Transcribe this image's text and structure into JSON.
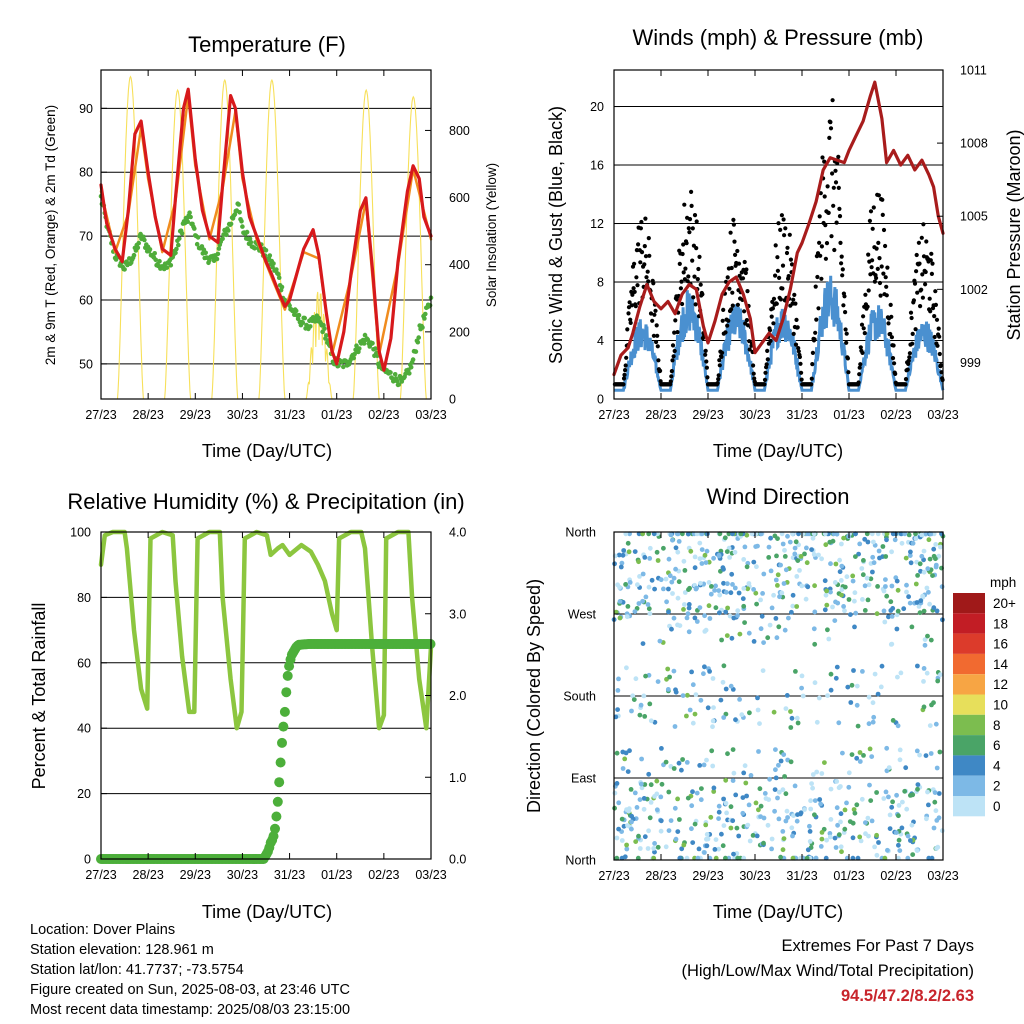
{
  "panels": {
    "temperature": {
      "title": "Temperature (F)",
      "xlabel": "Time (Day/UTC)",
      "ylabel_left": "2m & 9m T (Red, Orange) & 2m Td (Green)",
      "ylabel_right": "Solar Insolation (Yellow)"
    },
    "winds": {
      "title": "Winds (mph) & Pressure (mb)",
      "xlabel": "Time (Day/UTC)",
      "ylabel_left": "Sonic Wind & Gust (Blue, Black)",
      "ylabel_right": "Station Pressure (Maroon)"
    },
    "humidity": {
      "title": "Relative Humidity (%) & Precipitation (in)",
      "xlabel": "Time (Day/UTC)",
      "ylabel_left": "Percent & Total Rainfall"
    },
    "direction": {
      "title": "Wind Direction",
      "xlabel": "Time (Day/UTC)",
      "ylabel_left": "Direction (Colored By Speed)"
    }
  },
  "info": {
    "location": "Location: Dover Plains",
    "elevation": "Station elevation: 128.961 m",
    "latlon": "Station lat/lon: 41.7737; -73.5754",
    "created": "Figure created on Sun, 2025-08-03, at 23:46 UTC",
    "recent": "Most recent data timestamp: 2025/08/03 23:15:00"
  },
  "extremes": {
    "line1": "Extremes For Past 7 Days",
    "line2": "(High/Low/Max Wind/Total Precipitation)",
    "values": "94.5/47.2/8.2/2.63"
  },
  "chart_data": [
    {
      "id": "temperature",
      "type": "line",
      "title": "Temperature (F)",
      "xlabel": "Time (Day/UTC)",
      "ylabel": "2m & 9m T (Red, Orange) & 2m Td (Green)",
      "y2label": "Solar Insolation (Yellow)",
      "xticks": [
        "27/23",
        "28/23",
        "29/23",
        "30/23",
        "31/23",
        "01/23",
        "02/23",
        "03/23"
      ],
      "xlim": [
        0,
        7
      ],
      "ylim": [
        44.5,
        96
      ],
      "yticks": [
        50,
        60,
        70,
        80,
        90
      ],
      "y2lim": [
        0,
        980
      ],
      "y2ticks": [
        0,
        200,
        400,
        600,
        800
      ],
      "grid": true,
      "series": [
        {
          "name": "2m T",
          "color": "#d7191c",
          "x": [
            0,
            0.12,
            0.3,
            0.45,
            0.58,
            0.72,
            0.85,
            1,
            1.15,
            1.3,
            1.48,
            1.58,
            1.75,
            1.85,
            2,
            2.15,
            2.3,
            2.48,
            2.58,
            2.75,
            2.85,
            3,
            3.15,
            3.3,
            3.5,
            3.62,
            3.78,
            3.9,
            4,
            4.15,
            4.3,
            4.5,
            4.62,
            4.78,
            4.9,
            5,
            5.15,
            5.3,
            5.5,
            5.62,
            5.78,
            5.9,
            6,
            6.15,
            6.3,
            6.5,
            6.62,
            6.75,
            6.85,
            7
          ],
          "y": [
            78,
            72,
            68,
            66,
            74,
            86,
            88,
            80,
            73,
            68,
            67,
            76,
            90,
            93,
            82,
            74,
            70,
            69,
            78,
            92,
            90,
            80,
            73,
            70,
            66,
            64,
            61,
            59,
            60,
            64,
            68,
            71,
            67,
            58,
            52,
            50,
            55,
            64,
            74,
            76,
            63,
            52,
            49,
            54,
            66,
            77,
            81,
            79,
            73,
            70
          ]
        },
        {
          "name": "9m T",
          "color": "#f08c1e",
          "x": [
            0,
            0.3,
            0.58,
            0.85,
            1,
            1.3,
            1.58,
            1.85,
            2,
            2.3,
            2.58,
            2.85,
            3,
            3.3,
            3.62,
            3.9,
            4.3,
            4.62,
            4.9,
            5.3,
            5.62,
            5.9,
            6.3,
            6.62,
            7
          ],
          "y": [
            77,
            67.5,
            73.5,
            87,
            79,
            67.5,
            75.5,
            92,
            81,
            69.5,
            77.5,
            89.5,
            79,
            69.5,
            63.5,
            58.5,
            67.5,
            66.5,
            51.5,
            63.5,
            75.5,
            51.5,
            65.5,
            80.5,
            69.5
          ]
        },
        {
          "name": "2m Td",
          "color": "#4fac3a",
          "x": [
            0,
            0.15,
            0.3,
            0.5,
            0.7,
            0.85,
            1,
            1.2,
            1.4,
            1.6,
            1.75,
            1.9,
            2,
            2.2,
            2.4,
            2.6,
            2.75,
            2.9,
            3,
            3.2,
            3.4,
            3.6,
            3.75,
            3.9,
            4,
            4.2,
            4.4,
            4.6,
            4.75,
            4.9,
            5,
            5.2,
            5.4,
            5.6,
            5.75,
            5.9,
            6,
            6.2,
            6.4,
            6.6,
            6.75,
            6.9,
            7
          ],
          "y": [
            76,
            71,
            67,
            65,
            67,
            70,
            68,
            66,
            65,
            68,
            72,
            73,
            70,
            67,
            66,
            70,
            72,
            75,
            71,
            69,
            68,
            66,
            64,
            60,
            59,
            57,
            56,
            57,
            55,
            51,
            50,
            50,
            52,
            54,
            53,
            50,
            49,
            48,
            47,
            50,
            55,
            58,
            60
          ]
        }
      ],
      "solar": {
        "name": "Solar Insolation",
        "color": "#f7e05a",
        "days": [
          0,
          1,
          2,
          3,
          4,
          5,
          6
        ],
        "peaks": [
          960,
          920,
          950,
          950,
          330,
          920,
          900
        ]
      }
    },
    {
      "id": "winds",
      "type": "scatter",
      "title": "Winds (mph) & Pressure (mb)",
      "xlabel": "Time (Day/UTC)",
      "ylabel": "Sonic Wind & Gust (Blue, Black)",
      "y2label": "Station Pressure (Maroon)",
      "xticks": [
        "27/23",
        "28/23",
        "29/23",
        "30/23",
        "31/23",
        "01/23",
        "02/23",
        "03/23"
      ],
      "xlim": [
        0,
        7
      ],
      "ylim": [
        0,
        22.5
      ],
      "yticks": [
        0,
        4,
        8,
        12,
        16,
        20
      ],
      "y2lim": [
        997.5,
        1011
      ],
      "y2ticks": [
        999,
        1002,
        1005,
        1008,
        1011
      ],
      "grid": true,
      "series": [
        {
          "name": "Sonic Wind",
          "color": "#4a90d0",
          "hourly_day_max": [
            5,
            7,
            6,
            6,
            8,
            6,
            5,
            6
          ]
        },
        {
          "name": "Gust",
          "color": "#000000",
          "hourly_day_max": [
            12,
            14,
            12,
            12,
            20,
            14,
            11,
            10
          ]
        },
        {
          "name": "Station Pressure",
          "color": "#a81c1c",
          "x": [
            0,
            0.15,
            0.3,
            0.4,
            0.55,
            0.7,
            0.85,
            1.0,
            1.15,
            1.3,
            1.45,
            1.6,
            1.75,
            1.9,
            2.0,
            2.15,
            2.3,
            2.45,
            2.6,
            2.75,
            2.9,
            3.0,
            3.15,
            3.3,
            3.45,
            3.6,
            3.75,
            3.9,
            4.0,
            4.15,
            4.3,
            4.45,
            4.6,
            4.75,
            4.9,
            5.0,
            5.15,
            5.3,
            5.45,
            5.55,
            5.7,
            5.8,
            5.95,
            6.1,
            6.25,
            6.4,
            6.55,
            6.7,
            6.8,
            6.9,
            7.0
          ],
          "y": [
            998.5,
            999.3,
            999.6,
            1000.2,
            1001.3,
            1002.2,
            1001.5,
            1001.2,
            1001.5,
            1001.0,
            1001.8,
            1002.2,
            1002.0,
            1000.5,
            999.8,
            1000.7,
            1001.8,
            1002.3,
            1002.5,
            1001.8,
            1000.8,
            999.4,
            999.8,
            1000.2,
            999.9,
            1000.8,
            1002.0,
            1003.5,
            1003.9,
            1004.7,
            1005.6,
            1006.9,
            1007.4,
            1007.3,
            1007.2,
            1007.7,
            1008.3,
            1008.9,
            1009.9,
            1010.5,
            1009.0,
            1007.2,
            1007.7,
            1007.1,
            1007.5,
            1006.9,
            1007.3,
            1006.7,
            1006.2,
            1005.0,
            1004.3
          ]
        }
      ]
    },
    {
      "id": "humidity",
      "type": "line",
      "title": "Relative Humidity (%) & Precipitation (in)",
      "xlabel": "Time (Day/UTC)",
      "ylabel": "Percent & Total Rainfall",
      "xticks": [
        "27/23",
        "28/23",
        "29/23",
        "30/23",
        "31/23",
        "01/23",
        "02/23",
        "03/23"
      ],
      "xlim": [
        0,
        7
      ],
      "ylim": [
        0,
        100
      ],
      "yticks": [
        0,
        20,
        40,
        60,
        80,
        100
      ],
      "y2lim": [
        0,
        4
      ],
      "y2ticks": [
        "0.0",
        "1.0",
        "2.0",
        "3.0",
        "4.0"
      ],
      "grid": true,
      "series": [
        {
          "name": "Relative Humidity",
          "color": "#8cc63f",
          "x": [
            0,
            0.08,
            0.25,
            0.5,
            0.55,
            0.7,
            0.85,
            0.98,
            1.05,
            1.3,
            1.52,
            1.58,
            1.72,
            1.87,
            1.98,
            2.05,
            2.3,
            2.52,
            2.58,
            2.75,
            2.88,
            2.98,
            3.05,
            3.3,
            3.52,
            3.6,
            3.75,
            3.85,
            4.0,
            4.25,
            4.45,
            4.6,
            4.75,
            4.9,
            5.0,
            5.05,
            5.3,
            5.52,
            5.6,
            5.75,
            5.9,
            6.0,
            6.05,
            6.3,
            6.52,
            6.6,
            6.75,
            6.9,
            7.0
          ],
          "y": [
            90,
            99,
            100,
            100,
            95,
            70,
            52,
            46,
            98,
            100,
            99,
            85,
            62,
            45,
            45,
            98,
            100,
            100,
            80,
            55,
            40,
            45,
            98,
            100,
            99,
            93,
            95,
            96,
            93,
            96,
            94,
            90,
            85,
            75,
            70,
            98,
            100,
            100,
            95,
            65,
            40,
            44,
            98,
            100,
            100,
            80,
            55,
            40,
            65
          ]
        },
        {
          "name": "Total Rainfall",
          "color": "#4caf3a",
          "x": [
            0,
            3.45,
            3.5,
            3.55,
            3.6,
            3.65,
            3.7,
            3.75,
            3.8,
            3.85,
            3.9,
            3.95,
            4.0,
            4.05,
            4.1,
            4.15,
            4.2,
            4.4,
            7.0
          ],
          "y": [
            0,
            0,
            0.05,
            0.1,
            0.2,
            0.25,
            0.4,
            0.7,
            1.1,
            1.5,
            1.8,
            2.2,
            2.4,
            2.5,
            2.55,
            2.6,
            2.62,
            2.63,
            2.63
          ]
        }
      ]
    },
    {
      "id": "direction",
      "type": "scatter",
      "title": "Wind Direction",
      "xlabel": "Time (Day/UTC)",
      "ylabel": "Direction (Colored By Speed)",
      "xticks": [
        "27/23",
        "28/23",
        "29/23",
        "30/23",
        "31/23",
        "01/23",
        "02/23",
        "03/23"
      ],
      "xlim": [
        0,
        7
      ],
      "ylim": [
        0,
        360
      ],
      "yticks": [
        "North",
        "East",
        "South",
        "West",
        "North"
      ],
      "grid": true,
      "colorbar": {
        "title": "mph",
        "labels": [
          "20+",
          "18",
          "16",
          "14",
          "12",
          "10",
          "8",
          "6",
          "4",
          "2",
          "0"
        ],
        "colors": [
          "#a01919",
          "#c21d25",
          "#dc3b2b",
          "#f16a30",
          "#f7a544",
          "#e7df5b",
          "#7cbd4f",
          "#4aa467",
          "#3f88c5",
          "#7db9e6",
          "#bde3f6"
        ]
      },
      "series": [
        {
          "name": "Wind Direction",
          "clusters_deg": [
            360,
            330,
            300,
            270,
            180,
            90,
            45,
            20
          ],
          "speed_range_mph": [
            0,
            8
          ]
        }
      ]
    }
  ]
}
